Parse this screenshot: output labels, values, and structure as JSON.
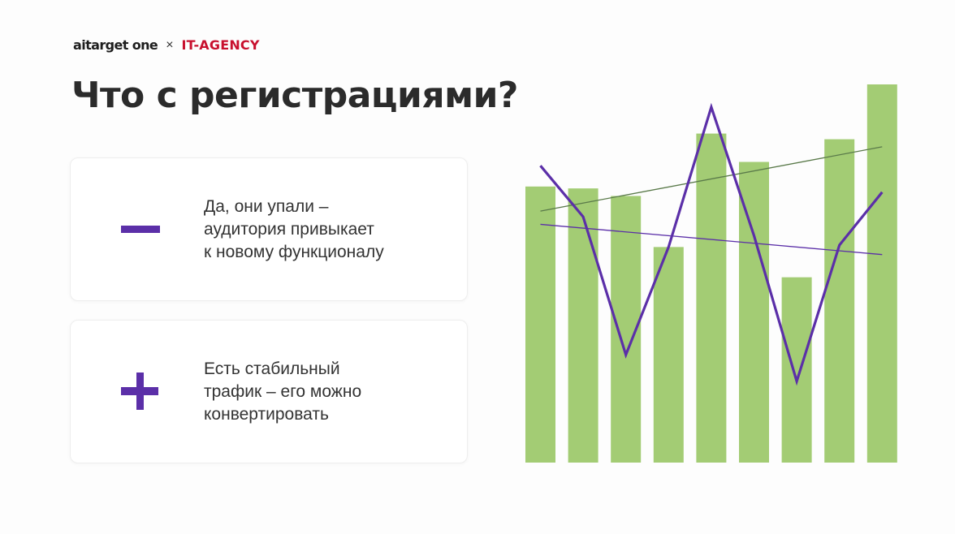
{
  "brand": {
    "logo": "aitarget one",
    "separator": "×",
    "partner": "IT-AGENCY"
  },
  "title": "Что с регистрациями?",
  "cards": [
    {
      "sign": "minus-icon",
      "lines": [
        "Да, они упали –",
        "аудитория привыкает",
        "к новому функционалу"
      ]
    },
    {
      "sign": "plus-icon",
      "lines": [
        "Есть стабильный",
        "трафик – его можно",
        "конвертировать"
      ]
    }
  ],
  "colors": {
    "accent": "#5b2fa8",
    "bars": "#a3cc74",
    "bar_trend": "#5a7a4a",
    "brand_red": "#c8102e"
  },
  "chart_data": {
    "type": "bar",
    "title": "",
    "xlabel": "",
    "ylabel": "",
    "ylim": [
      0,
      100
    ],
    "grid": false,
    "series": [
      {
        "values": [
          73,
          72.5,
          70.5,
          57,
          87,
          79.5,
          49,
          85.5,
          100
        ]
      },
      {
        "type": "line",
        "values": [
          78.5,
          65,
          28.5,
          57,
          94,
          60,
          21.5,
          57.5,
          71.5
        ]
      },
      {
        "type": "trendline",
        "from": 66.5,
        "to": 83.5
      },
      {
        "type": "trendline",
        "from": 63,
        "to": 55
      }
    ]
  }
}
